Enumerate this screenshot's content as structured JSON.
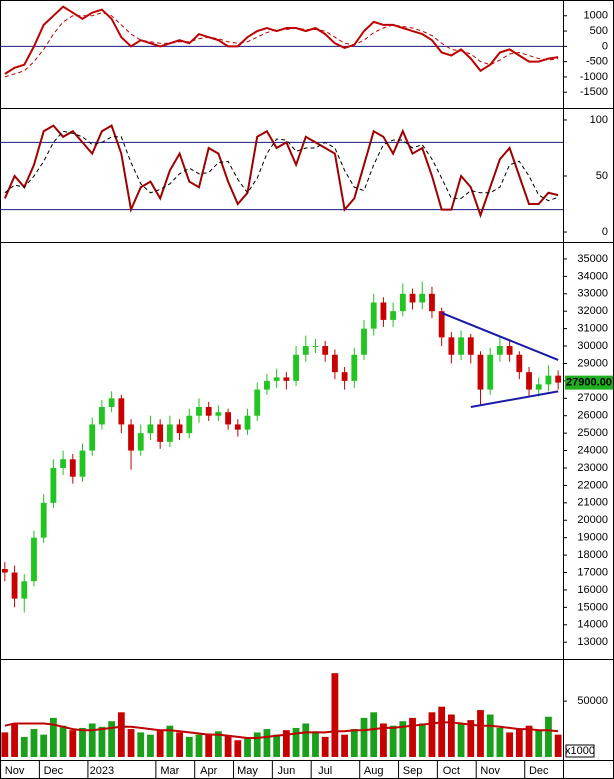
{
  "chart_data": [
    {
      "type": "line",
      "ylim": [
        -1950,
        1450
      ],
      "yticks": [
        1000,
        500,
        0,
        -500,
        -1000,
        -1500
      ],
      "hlines": [
        0
      ],
      "series": [
        {
          "color": "#c00000",
          "style": "solid",
          "values": [
            -900,
            -700,
            -600,
            0,
            700,
            1000,
            1300,
            1100,
            900,
            1100,
            1200,
            900,
            300,
            0,
            200,
            100,
            0,
            100,
            200,
            100,
            400,
            300,
            200,
            0,
            0,
            300,
            500,
            600,
            500,
            600,
            600,
            500,
            600,
            400,
            100,
            -50,
            50,
            500,
            800,
            700,
            700,
            600,
            500,
            400,
            200,
            -200,
            -300,
            -100,
            -400,
            -800,
            -600,
            -200,
            -100,
            -300,
            -500,
            -500,
            -400,
            -350
          ]
        },
        {
          "color": "#c00000",
          "style": "dashed",
          "values": [
            -1000,
            -900,
            -800,
            -500,
            -100,
            400,
            800,
            1000,
            1000,
            1000,
            1100,
            1000,
            700,
            400,
            200,
            150,
            100,
            100,
            150,
            150,
            250,
            300,
            250,
            150,
            100,
            150,
            300,
            450,
            550,
            550,
            600,
            550,
            550,
            500,
            300,
            100,
            50,
            200,
            450,
            600,
            700,
            650,
            600,
            500,
            350,
            100,
            -100,
            -150,
            -250,
            -500,
            -600,
            -450,
            -250,
            -200,
            -300,
            -400,
            -450,
            -400
          ]
        }
      ]
    },
    {
      "type": "line",
      "ylim": [
        -8,
        108
      ],
      "yticks": [
        100,
        50,
        0
      ],
      "hlines": [
        80,
        20
      ],
      "series": [
        {
          "color": "#a00000",
          "style": "solid",
          "values": [
            30,
            50,
            40,
            60,
            90,
            95,
            85,
            90,
            80,
            70,
            90,
            95,
            70,
            20,
            40,
            45,
            30,
            55,
            70,
            45,
            40,
            75,
            70,
            45,
            25,
            35,
            85,
            90,
            75,
            80,
            60,
            85,
            80,
            75,
            70,
            20,
            30,
            60,
            90,
            85,
            70,
            90,
            70,
            75,
            50,
            20,
            20,
            50,
            40,
            15,
            40,
            65,
            75,
            50,
            25,
            25,
            35,
            33
          ]
        },
        {
          "color": "#000000",
          "style": "dashed",
          "values": [
            35,
            42,
            40,
            50,
            63,
            80,
            90,
            88,
            85,
            78,
            80,
            85,
            85,
            62,
            43,
            35,
            38,
            43,
            52,
            57,
            52,
            53,
            62,
            63,
            47,
            35,
            48,
            70,
            83,
            82,
            72,
            75,
            75,
            80,
            75,
            55,
            40,
            37,
            60,
            78,
            82,
            82,
            75,
            78,
            65,
            48,
            30,
            30,
            37,
            35,
            35,
            40,
            60,
            63,
            50,
            33,
            28,
            31
          ]
        }
      ]
    },
    {
      "type": "candlestick",
      "ylim": [
        12150,
        35800
      ],
      "yticks": [
        13000,
        14000,
        15000,
        16000,
        17000,
        18000,
        19000,
        20000,
        21000,
        22000,
        23000,
        24000,
        25000,
        26000,
        27000,
        28000,
        29000,
        30000,
        31000,
        32000,
        33000,
        34000,
        35000
      ],
      "up_color": "#22c422",
      "down_color": "#c80000",
      "open": [
        17200,
        17000,
        15500,
        16500,
        19000,
        21000,
        23000,
        23500,
        22500,
        24000,
        25500,
        26500,
        27000,
        25500,
        24000,
        25000,
        25500,
        24500,
        25500,
        25000,
        26000,
        26500,
        26000,
        26200,
        25500,
        25200,
        26000,
        27500,
        28000,
        28200,
        28000,
        29500,
        30000,
        30000,
        29500,
        28500,
        28000,
        29500,
        31000,
        32500,
        31500,
        32000,
        33000,
        32500,
        33000,
        32000,
        30500,
        29500,
        30500,
        29500,
        27500,
        29500,
        30000,
        29500,
        28500,
        27500,
        27800,
        28300
      ],
      "high": [
        17600,
        17400,
        16900,
        19400,
        21500,
        23500,
        24000,
        23800,
        24400,
        25900,
        26900,
        27400,
        27200,
        25800,
        25500,
        26000,
        25800,
        26000,
        25800,
        26400,
        27000,
        26800,
        26600,
        26400,
        25800,
        26400,
        27900,
        28400,
        28700,
        28500,
        30000,
        30600,
        30400,
        30300,
        29800,
        28800,
        29900,
        31500,
        33000,
        32800,
        32500,
        33600,
        33300,
        33700,
        33400,
        32200,
        30800,
        30900,
        30700,
        29700,
        29900,
        30600,
        30300,
        29700,
        28800,
        28200,
        28900,
        28600
      ],
      "low": [
        16500,
        15000,
        14700,
        16200,
        18700,
        20700,
        22600,
        22100,
        22200,
        23700,
        25200,
        26200,
        25000,
        22900,
        23700,
        24600,
        24100,
        24200,
        24600,
        24700,
        25600,
        25700,
        25700,
        25200,
        24800,
        24900,
        25700,
        27200,
        27600,
        27500,
        27700,
        29100,
        29600,
        29100,
        28100,
        27500,
        27600,
        29200,
        30600,
        31100,
        31100,
        31700,
        32100,
        32100,
        31600,
        30000,
        29000,
        29200,
        29000,
        26600,
        27200,
        29100,
        29100,
        28100,
        27100,
        27100,
        27400,
        27500
      ],
      "close": [
        17000,
        15500,
        16500,
        19000,
        21000,
        23000,
        23500,
        22500,
        24000,
        25500,
        26500,
        27000,
        25500,
        24000,
        25000,
        25500,
        24500,
        25500,
        25000,
        26000,
        26500,
        26000,
        26200,
        25500,
        25200,
        26000,
        27500,
        28000,
        28200,
        28000,
        29500,
        30000,
        30000,
        29500,
        28500,
        28000,
        29500,
        31000,
        32500,
        31500,
        32000,
        33000,
        32500,
        33000,
        32000,
        30500,
        29500,
        30500,
        29500,
        27500,
        29500,
        30000,
        29500,
        28500,
        27500,
        27800,
        28300,
        27900
      ],
      "last_price": {
        "value": 27900,
        "label": "27900.00"
      },
      "trendlines": [
        {
          "color": "#1a1aa8",
          "x": [
            45,
            57
          ],
          "y": [
            31900,
            29200
          ]
        },
        {
          "color": "#1a1aa8",
          "x": [
            48,
            57
          ],
          "y": [
            26500,
            27400
          ]
        }
      ]
    },
    {
      "type": "bar",
      "ylim": [
        0,
        85000
      ],
      "yticks": [
        50000
      ],
      "unit_label": "x1000",
      "categories": [
        null,
        "Nov",
        null,
        null,
        null,
        "Dec",
        null,
        null,
        null,
        null,
        "2023",
        null,
        null,
        null,
        null,
        null,
        null,
        "Mar",
        null,
        null,
        null,
        "Apr",
        null,
        null,
        null,
        "May",
        null,
        null,
        null,
        "Jun",
        null,
        null,
        null,
        "Jul",
        null,
        null,
        null,
        null,
        "Aug",
        null,
        null,
        null,
        "Sep",
        null,
        null,
        null,
        "Oct",
        null,
        null,
        null,
        "Nov",
        null,
        null,
        null,
        null,
        "Dec",
        null,
        null
      ],
      "up_color": "#1aa01a",
      "down_color": "#c80000",
      "values": [
        22000,
        30000,
        18000,
        25000,
        20000,
        35000,
        28000,
        24000,
        26000,
        30000,
        27000,
        32000,
        40000,
        25000,
        22000,
        20000,
        24000,
        28000,
        22000,
        18000,
        20000,
        21000,
        23000,
        19000,
        15000,
        17000,
        22000,
        25000,
        20000,
        24000,
        26000,
        30000,
        23000,
        18000,
        75000,
        20000,
        25000,
        35000,
        40000,
        30000,
        28000,
        32000,
        35000,
        30000,
        40000,
        45000,
        38000,
        30000,
        33000,
        42000,
        38000,
        26000,
        22000,
        25000,
        28000,
        24000,
        36000,
        20000
      ],
      "ma": {
        "color": "#c00000",
        "values": [
          28000,
          30000,
          30000,
          30000,
          30000,
          29000,
          27000,
          25000,
          24000,
          24000,
          25000,
          26000,
          27000,
          27000,
          26000,
          25000,
          24000,
          24000,
          23000,
          22000,
          21000,
          20000,
          20000,
          19000,
          18000,
          17000,
          17000,
          18000,
          19000,
          20000,
          21000,
          22000,
          22000,
          22000,
          23000,
          23000,
          24000,
          24000,
          25000,
          26000,
          26000,
          27000,
          28000,
          29000,
          30000,
          31000,
          31000,
          30000,
          29000,
          28000,
          28000,
          27000,
          26000,
          25000,
          25000,
          24000,
          24000,
          23000
        ]
      }
    }
  ]
}
